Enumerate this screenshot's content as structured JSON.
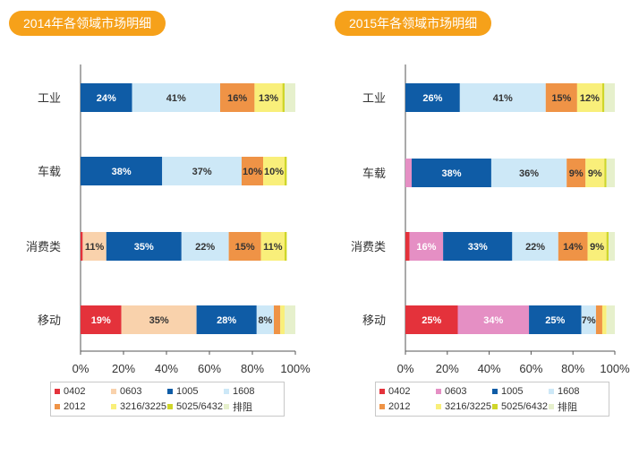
{
  "colors": {
    "0402": "#e4323b",
    "0603": "#f9d2ac",
    "0603_2015": "#e58fc4",
    "1005": "#0f5ca6",
    "1608": "#cde8f7",
    "2012": "#ef9346",
    "3216/3225": "#f9ef7a",
    "5025/6432": "#cfd62a",
    "排阻": "#e6f0cc",
    "title_bg": "#f6a11a"
  },
  "chart_data": [
    {
      "type": "bar",
      "orientation": "horizontal-stacked",
      "title": "2014年各领域市场明细",
      "categories": [
        "工业",
        "车载",
        "消费类",
        "移动"
      ],
      "xlim": [
        0,
        100
      ],
      "x_ticks": [
        "0%",
        "20%",
        "40%",
        "60%",
        "80%",
        "100%"
      ],
      "grid": false,
      "legend_position": "bottom",
      "legend": [
        "0402",
        "0603",
        "1005",
        "1608",
        "2012",
        "3216/3225",
        "5025/6432",
        "排阻"
      ],
      "series": [
        {
          "name": "0402",
          "values": [
            0,
            0,
            1,
            19
          ],
          "labels": [
            "",
            "",
            "",
            "19%"
          ]
        },
        {
          "name": "0603",
          "values": [
            0,
            0,
            11,
            35
          ],
          "labels": [
            "",
            "",
            "11%",
            "35%"
          ]
        },
        {
          "name": "1005",
          "values": [
            24,
            38,
            35,
            28
          ],
          "labels": [
            "24%",
            "38%",
            "35%",
            "28%"
          ]
        },
        {
          "name": "1608",
          "values": [
            41,
            37,
            22,
            8
          ],
          "labels": [
            "41%",
            "37%",
            "22%",
            "8%"
          ]
        },
        {
          "name": "2012",
          "values": [
            16,
            10,
            15,
            3
          ],
          "labels": [
            "16%",
            "10%",
            "15%",
            ""
          ]
        },
        {
          "name": "3216/3225",
          "values": [
            13,
            10,
            11,
            2
          ],
          "labels": [
            "13%",
            "10%",
            "11%",
            ""
          ]
        },
        {
          "name": "5025/6432",
          "values": [
            1,
            1,
            1,
            0
          ],
          "labels": [
            "",
            "",
            "",
            ""
          ]
        },
        {
          "name": "排阻",
          "values": [
            5,
            0,
            0,
            5
          ],
          "labels": [
            "",
            "",
            "",
            ""
          ]
        }
      ]
    },
    {
      "type": "bar",
      "orientation": "horizontal-stacked",
      "title": "2015年各领域市场明细",
      "categories": [
        "工业",
        "车载",
        "消费类",
        "移动"
      ],
      "xlim": [
        0,
        100
      ],
      "x_ticks": [
        "0%",
        "20%",
        "40%",
        "60%",
        "80%",
        "100%"
      ],
      "grid": false,
      "legend_position": "bottom",
      "legend": [
        "0402",
        "0603",
        "1005",
        "1608",
        "2012",
        "3216/3225",
        "5025/6432",
        "排阻"
      ],
      "series": [
        {
          "name": "0402",
          "values": [
            0,
            0,
            2,
            25
          ],
          "labels": [
            "",
            "",
            "",
            "25%"
          ]
        },
        {
          "name": "0603",
          "values": [
            0,
            3,
            16,
            34
          ],
          "labels": [
            "",
            "",
            "16%",
            "34%"
          ]
        },
        {
          "name": "1005",
          "values": [
            26,
            38,
            33,
            25
          ],
          "labels": [
            "26%",
            "38%",
            "33%",
            "25%"
          ]
        },
        {
          "name": "1608",
          "values": [
            41,
            36,
            22,
            7
          ],
          "labels": [
            "41%",
            "36%",
            "22%",
            "7%"
          ]
        },
        {
          "name": "2012",
          "values": [
            15,
            9,
            14,
            3
          ],
          "labels": [
            "15%",
            "9%",
            "14%",
            ""
          ]
        },
        {
          "name": "3216/3225",
          "values": [
            12,
            9,
            9,
            2
          ],
          "labels": [
            "12%",
            "9%",
            "9%",
            ""
          ]
        },
        {
          "name": "5025/6432",
          "values": [
            1,
            1,
            1,
            0
          ],
          "labels": [
            "",
            "",
            "",
            ""
          ]
        },
        {
          "name": "排阻",
          "values": [
            5,
            4,
            3,
            4
          ],
          "labels": [
            "",
            "",
            "",
            ""
          ]
        }
      ]
    }
  ]
}
